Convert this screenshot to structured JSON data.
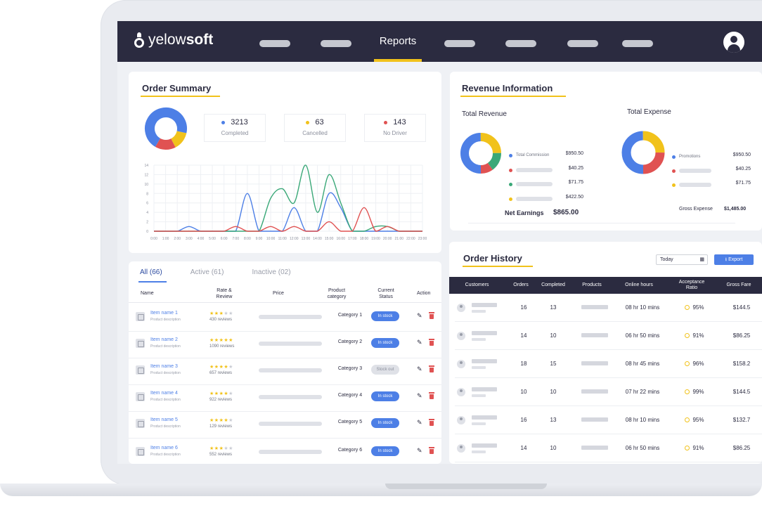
{
  "header": {
    "logo_bold": "yelow",
    "logo_regular": "soft",
    "active_nav": "Reports",
    "accent_color": "#f1c21b",
    "bar_color": "#2b2b40"
  },
  "order_summary": {
    "title": "Order Summary",
    "stats": [
      {
        "value": "3213",
        "label": "Completed",
        "color": "#4d7fe6"
      },
      {
        "value": "63",
        "label": "Cancelled",
        "color": "#f1c21b"
      },
      {
        "value": "143",
        "label": "No Driver",
        "color": "#e05252"
      }
    ]
  },
  "chart_data": {
    "type": "line",
    "title": "",
    "x": [
      "0:00",
      "1:00",
      "2:00",
      "3:00",
      "4:00",
      "5:00",
      "6:00",
      "7:00",
      "8:00",
      "9:00",
      "10:00",
      "11:00",
      "12:00",
      "13:00",
      "14:00",
      "15:00",
      "16:00",
      "17:00",
      "18:00",
      "19:00",
      "20:00",
      "21:00",
      "22:00",
      "23:00"
    ],
    "yticks": [
      0,
      2,
      4,
      6,
      8,
      10,
      12,
      14
    ],
    "ylim": [
      0,
      14
    ],
    "grid": true,
    "series": [
      {
        "color": "#4d7fe6",
        "values": [
          0,
          0,
          0,
          1,
          0,
          0,
          0,
          0,
          8,
          0,
          0,
          0,
          5,
          0,
          0,
          8,
          5,
          0,
          0,
          0,
          0,
          0,
          0,
          0
        ]
      },
      {
        "color": "#3aa878",
        "values": [
          0,
          0,
          0,
          0,
          0,
          0,
          0,
          0,
          0,
          0,
          7,
          9,
          6,
          14,
          4,
          12,
          6,
          0,
          0,
          1,
          1,
          0,
          0,
          0
        ]
      },
      {
        "color": "#e05252",
        "values": [
          0,
          0,
          0,
          0,
          0,
          0,
          0,
          1,
          0,
          0,
          1,
          0,
          1,
          0,
          0,
          2,
          0,
          0,
          5,
          0,
          1,
          0,
          0,
          0
        ]
      }
    ]
  },
  "products": {
    "tabs": [
      {
        "label": "All",
        "count": "(66)"
      },
      {
        "label": "Active",
        "count": "(61)"
      },
      {
        "label": "Inactive",
        "count": "(02)"
      }
    ],
    "columns": [
      "Name",
      "Rate & Review",
      "Price",
      "Product category",
      "Current Status",
      "Action"
    ],
    "rows": [
      {
        "name": "Item name 1",
        "desc": "Product description",
        "stars": 3,
        "reviews": "430 reviews",
        "category": "Category 1",
        "status": "In stock",
        "in_stock": true
      },
      {
        "name": "Item name 2",
        "desc": "Product description",
        "stars": 5,
        "reviews": "1090 reviews",
        "category": "Category 2",
        "status": "In stock",
        "in_stock": true
      },
      {
        "name": "Item name 3",
        "desc": "Product description",
        "stars": 4,
        "reviews": "657 reviews",
        "category": "Category 3",
        "status": "Stock out",
        "in_stock": false
      },
      {
        "name": "Item name 4",
        "desc": "Product description",
        "stars": 4,
        "reviews": "922 reviews",
        "category": "Category 4",
        "status": "In stock",
        "in_stock": true
      },
      {
        "name": "Item name 5",
        "desc": "Product description",
        "stars": 4,
        "reviews": "129 reviews",
        "category": "Category 5",
        "status": "In stock",
        "in_stock": true
      },
      {
        "name": "Item name 6",
        "desc": "Product description",
        "stars": 3,
        "reviews": "552 reviews",
        "category": "Category 6",
        "status": "In stock",
        "in_stock": true
      }
    ]
  },
  "revenue": {
    "title": "Revenue Information",
    "total_revenue_label": "Total Revenue",
    "total_expense_label": "Total Expense",
    "revenue_items": [
      {
        "label": "Total Commission",
        "value": "$950.50",
        "color": "#4d7fe6"
      },
      {
        "label": "",
        "value": "$40.25",
        "color": "#e05252"
      },
      {
        "label": "",
        "value": "$71.75",
        "color": "#3aa878"
      },
      {
        "label": "",
        "value": "$422.50",
        "color": "#f1c21b"
      }
    ],
    "expense_items": [
      {
        "label": "Promotions",
        "value": "$950.50",
        "color": "#4d7fe6"
      },
      {
        "label": "",
        "value": "$40.25",
        "color": "#e05252"
      },
      {
        "label": "",
        "value": "$71.75",
        "color": "#f1c21b"
      }
    ],
    "gross_expense_label": "Gross Expense",
    "gross_expense_value": "$1,485.00",
    "net_label": "Net Earnings",
    "net_value": "$865.00"
  },
  "order_history": {
    "title": "Order History",
    "date_value": "Today",
    "export_label": "Export",
    "columns": [
      "Customers",
      "Orders",
      "Completed",
      "Products",
      "Online hours",
      "Acceptance Ratio",
      "Gross Fare"
    ],
    "rows": [
      {
        "orders": "16",
        "completed": "13",
        "hours": "08 hr 10 mins",
        "ratio": "95%",
        "fare": "$144.5"
      },
      {
        "orders": "14",
        "completed": "10",
        "hours": "06 hr 50 mins",
        "ratio": "91%",
        "fare": "$86.25"
      },
      {
        "orders": "18",
        "completed": "15",
        "hours": "08 hr 45 mins",
        "ratio": "96%",
        "fare": "$158.2"
      },
      {
        "orders": "10",
        "completed": "10",
        "hours": "07 hr 22 mins",
        "ratio": "99%",
        "fare": "$144.5"
      },
      {
        "orders": "16",
        "completed": "13",
        "hours": "08 hr 10 mins",
        "ratio": "95%",
        "fare": "$132.7"
      },
      {
        "orders": "14",
        "completed": "10",
        "hours": "06 hr 50 mins",
        "ratio": "91%",
        "fare": "$86.25"
      }
    ]
  }
}
